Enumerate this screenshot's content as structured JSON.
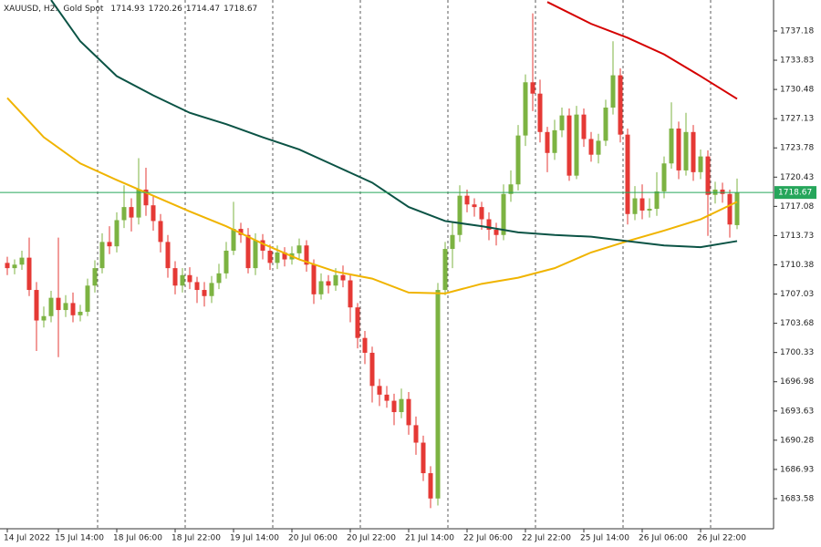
{
  "chart_data": {
    "type": "candlestick",
    "symbol": "XAUUSD, H2:",
    "description": "Gold Spot",
    "up_color": "#7cb342",
    "down_color": "#e53935",
    "open": [
      1710.6,
      1710.0,
      1710.4,
      1711.2,
      1707.5,
      1704.0,
      1704.5,
      1706.6,
      1705.2,
      1706.0,
      1704.6,
      1705.0,
      1708.0,
      1710.0,
      1713.0,
      1712.5,
      1715.5,
      1717.0,
      1715.8,
      1719.0,
      1717.2,
      1715.4,
      1713.0,
      1710.0,
      1708.0,
      1709.2,
      1708.4,
      1707.5,
      1706.8,
      1708.3,
      1709.4,
      1712.0,
      1714.5,
      1713.8,
      1710.0,
      1713.2,
      1712.0,
      1710.6,
      1711.8,
      1711.0,
      1711.7,
      1712.6,
      1710.4,
      1707.0,
      1708.5,
      1708.0,
      1709.2,
      1708.6,
      1705.5,
      1702.0,
      1700.3,
      1696.5,
      1695.5,
      1694.8,
      1693.5,
      1695.0,
      1692.0,
      1690.0,
      1686.5,
      1683.6,
      1707.5,
      1712.2,
      1713.8,
      1718.3,
      1717.3,
      1717.0,
      1715.6,
      1714.4,
      1713.8,
      1718.5,
      1719.6,
      1725.2,
      1731.3,
      1730.0,
      1725.6,
      1723.2,
      1725.8,
      1727.5,
      1720.6,
      1727.6,
      1724.8,
      1723.0,
      1724.6,
      1728.4,
      1732.1,
      1725.3,
      1716.2,
      1718.0,
      1716.6,
      1716.8,
      1718.8,
      1722.0,
      1726.0,
      1721.2,
      1725.6,
      1721.0,
      1722.8,
      1718.4,
      1719.0,
      1718.5,
      1714.93
    ],
    "high": [
      1711.3,
      1711.0,
      1712.0,
      1713.5,
      1708.4,
      1705.6,
      1707.4,
      1713.5,
      1706.9,
      1707.2,
      1705.8,
      1708.8,
      1710.9,
      1714.0,
      1714.8,
      1716.4,
      1719.5,
      1718.0,
      1722.6,
      1721.5,
      1718.3,
      1716.2,
      1713.8,
      1710.8,
      1710.0,
      1710.1,
      1709.0,
      1708.4,
      1709.1,
      1710.5,
      1713.0,
      1717.6,
      1715.2,
      1714.6,
      1714.0,
      1713.9,
      1712.7,
      1712.6,
      1712.4,
      1712.5,
      1713.4,
      1713.2,
      1711.0,
      1709.4,
      1709.2,
      1710.0,
      1710.3,
      1709.2,
      1706.0,
      1702.8,
      1701.0,
      1697.3,
      1696.5,
      1695.6,
      1696.2,
      1695.8,
      1693.0,
      1690.8,
      1687.3,
      1708.3,
      1713.0,
      1715.2,
      1719.5,
      1719.0,
      1718.0,
      1717.6,
      1716.4,
      1715.2,
      1719.6,
      1721.2,
      1726.4,
      1732.2,
      1739.2,
      1731.6,
      1726.2,
      1727.0,
      1728.4,
      1728.3,
      1728.6,
      1728.3,
      1725.6,
      1725.4,
      1729.3,
      1736.0,
      1732.9,
      1726.0,
      1719.4,
      1719.6,
      1718.0,
      1721.0,
      1722.8,
      1729.0,
      1726.8,
      1727.8,
      1726.4,
      1723.6,
      1723.5,
      1719.9,
      1719.8,
      1719.0,
      1720.26
    ],
    "low": [
      1709.2,
      1709.3,
      1709.8,
      1706.8,
      1700.5,
      1703.2,
      1703.8,
      1699.8,
      1704.4,
      1703.8,
      1703.9,
      1704.5,
      1707.2,
      1709.4,
      1711.6,
      1711.8,
      1714.6,
      1714.2,
      1715.0,
      1716.0,
      1714.3,
      1711.8,
      1708.9,
      1707.0,
      1707.2,
      1707.6,
      1706.0,
      1705.6,
      1706.0,
      1707.6,
      1708.8,
      1711.5,
      1712.9,
      1709.4,
      1709.2,
      1711.0,
      1709.8,
      1709.9,
      1710.2,
      1710.4,
      1711.0,
      1709.6,
      1705.9,
      1706.4,
      1707.1,
      1707.4,
      1707.8,
      1703.8,
      1700.8,
      1699.0,
      1694.6,
      1694.2,
      1694.0,
      1692.0,
      1692.8,
      1690.9,
      1688.6,
      1685.6,
      1682.5,
      1682.8,
      1706.9,
      1710.0,
      1713.0,
      1716.4,
      1715.9,
      1714.4,
      1713.2,
      1712.6,
      1713.2,
      1717.6,
      1718.9,
      1724.0,
      1728.0,
      1724.4,
      1721.0,
      1722.4,
      1725.0,
      1720.0,
      1720.2,
      1723.9,
      1722.2,
      1722.0,
      1724.0,
      1727.6,
      1724.4,
      1715.0,
      1715.5,
      1715.6,
      1715.8,
      1716.0,
      1718.0,
      1721.4,
      1720.2,
      1720.6,
      1720.0,
      1720.2,
      1713.7,
      1717.4,
      1717.5,
      1713.5,
      1714.47
    ],
    "close": [
      1710.0,
      1710.4,
      1711.2,
      1707.5,
      1704.0,
      1704.5,
      1706.6,
      1705.2,
      1706.0,
      1704.6,
      1705.0,
      1708.0,
      1710.0,
      1713.0,
      1712.5,
      1715.5,
      1717.0,
      1715.8,
      1719.0,
      1717.2,
      1715.4,
      1713.0,
      1710.0,
      1708.0,
      1709.2,
      1708.4,
      1707.5,
      1706.8,
      1708.3,
      1709.4,
      1712.0,
      1714.5,
      1713.8,
      1710.0,
      1713.2,
      1712.0,
      1710.6,
      1711.8,
      1711.0,
      1711.7,
      1712.6,
      1710.4,
      1707.0,
      1708.5,
      1708.0,
      1709.2,
      1708.6,
      1705.5,
      1702.0,
      1700.3,
      1696.5,
      1695.5,
      1694.8,
      1693.5,
      1695.0,
      1692.0,
      1690.0,
      1686.5,
      1683.6,
      1707.5,
      1712.2,
      1713.8,
      1718.3,
      1717.3,
      1717.0,
      1715.6,
      1714.4,
      1713.8,
      1718.5,
      1719.6,
      1725.2,
      1731.3,
      1730.0,
      1725.6,
      1723.2,
      1725.8,
      1727.5,
      1720.6,
      1727.6,
      1724.8,
      1723.0,
      1724.6,
      1728.4,
      1732.1,
      1725.3,
      1716.2,
      1718.0,
      1716.6,
      1716.8,
      1718.8,
      1722.0,
      1726.0,
      1721.2,
      1725.6,
      1721.0,
      1722.8,
      1718.4,
      1719.0,
      1718.5,
      1715.0,
      1718.67
    ],
    "overlays": [
      {
        "color": "#f0b400",
        "x": [
          0,
          5,
          10,
          15,
          20,
          25,
          30,
          35,
          40,
          45,
          50,
          55,
          60,
          65,
          70,
          75,
          80,
          85,
          90,
          95,
          100
        ],
        "values": [
          1729.5,
          1725.0,
          1722.0,
          1720.1,
          1718.3,
          1716.5,
          1714.8,
          1712.8,
          1711.0,
          1709.6,
          1708.8,
          1707.2,
          1707.1,
          1708.2,
          1708.9,
          1710.0,
          1711.8,
          1713.1,
          1714.3,
          1715.6,
          1717.6
        ]
      },
      {
        "color": "#0b5345",
        "x": [
          6,
          10,
          15,
          20,
          25,
          30,
          35,
          40,
          45,
          50,
          55,
          60,
          65,
          70,
          75,
          80,
          85,
          90,
          95,
          100
        ],
        "values": [
          1740.73,
          1736.0,
          1732.0,
          1729.8,
          1727.8,
          1726.5,
          1725.0,
          1723.6,
          1721.7,
          1719.8,
          1717.0,
          1715.4,
          1714.8,
          1714.1,
          1713.8,
          1713.6,
          1713.1,
          1712.6,
          1712.4,
          1713.1
        ]
      },
      {
        "color": "#d50000",
        "x": [
          74,
          80,
          85,
          90,
          95,
          100
        ],
        "values": [
          1740.5,
          1738.0,
          1736.4,
          1734.5,
          1732.0,
          1729.4
        ]
      }
    ],
    "price_line_color": "#26a65b",
    "xlim": [
      -1,
      105
    ],
    "xticks": [
      {
        "value": 0,
        "label": "14 Jul 2022"
      },
      {
        "value": 7,
        "label": "15 Jul 14:00"
      },
      {
        "value": 15,
        "label": "18 Jul 06:00"
      },
      {
        "value": 23,
        "label": "18 Jul 22:00"
      },
      {
        "value": 31,
        "label": "19 Jul 14:00"
      },
      {
        "value": 39,
        "label": "20 Jul 06:00"
      },
      {
        "value": 47,
        "label": "20 Jul 22:00"
      },
      {
        "value": 55,
        "label": "21 Jul 14:00"
      },
      {
        "value": 63,
        "label": "22 Jul 06:00"
      },
      {
        "value": 71,
        "label": "22 Jul 22:00"
      },
      {
        "value": 79,
        "label": "25 Jul 14:00"
      },
      {
        "value": 87,
        "label": "26 Jul 06:00"
      },
      {
        "value": 95,
        "label": "26 Jul 22:00"
      }
    ],
    "ylim": [
      1680.13,
      1740.73
    ],
    "yticks": [
      1737.18,
      1733.83,
      1730.48,
      1727.13,
      1723.78,
      1720.43,
      1717.08,
      1713.73,
      1710.38,
      1707.03,
      1703.68,
      1700.33,
      1696.98,
      1693.63,
      1690.28,
      1686.93,
      1683.58
    ]
  }
}
